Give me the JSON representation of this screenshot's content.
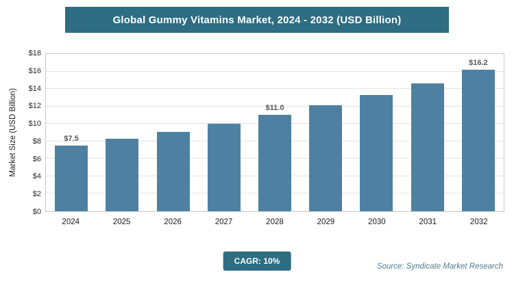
{
  "header": {
    "title": "Global Gummy Vitamins Market, 2024 - 2032 (USD Billion)"
  },
  "chart_data": {
    "type": "bar",
    "title": "Global Gummy Vitamins Market, 2024 - 2032 (USD Billion)",
    "categories": [
      "2024",
      "2025",
      "2026",
      "2027",
      "2028",
      "2029",
      "2030",
      "2031",
      "2032"
    ],
    "values": [
      7.5,
      8.3,
      9.1,
      10.0,
      11.0,
      12.1,
      13.3,
      14.6,
      16.2
    ],
    "bar_labels": [
      "$7.5",
      "",
      "",
      "",
      "$11.0",
      "",
      "",
      "",
      "$16.2"
    ],
    "xlabel": "",
    "ylabel": "Market Size (USD Billion)",
    "ylim": [
      0,
      18
    ],
    "ytick_labels": [
      "$0",
      "$2",
      "$4",
      "$6",
      "$8",
      "$10",
      "$12",
      "$14",
      "$16",
      "$18"
    ],
    "grid": true,
    "legend": "none",
    "bar_color": "#4e81a1"
  },
  "footer": {
    "cagr_label": "CAGR: 10%",
    "source": "Source: Syndicate Market Research"
  },
  "colors": {
    "header_bg": "#2e6d82",
    "badge_bg": "#2e6d82",
    "bar": "#4e81a1",
    "source_text": "#50798c"
  }
}
